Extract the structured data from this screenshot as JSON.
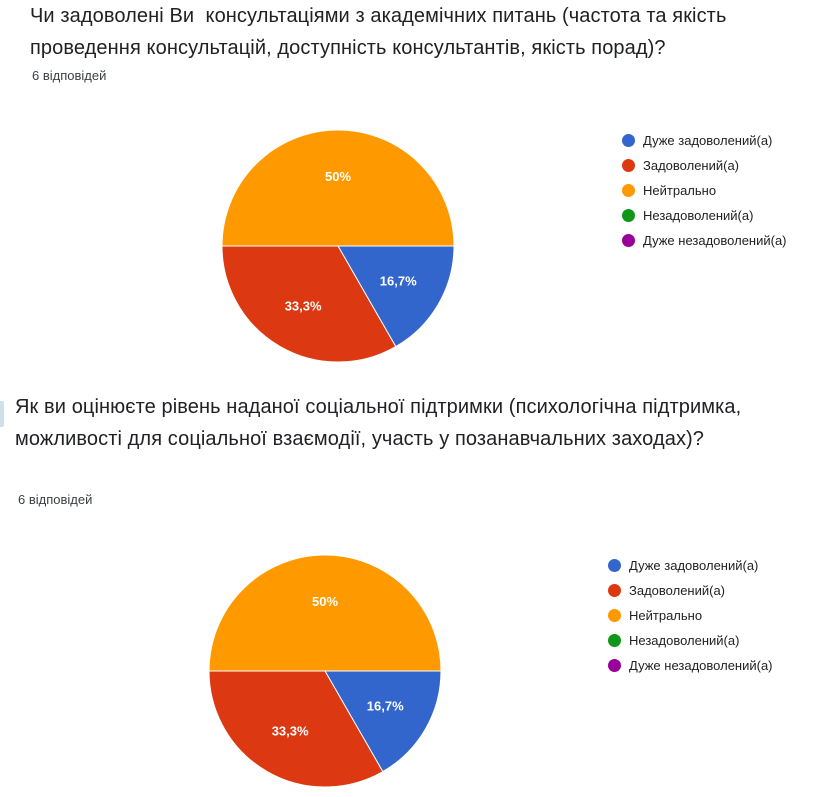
{
  "questions": [
    {
      "title": "Чи задоволені Ви  консультаціями з академічних питань (частота та якість проведення консультацій, доступність консультантів, якість порад)?",
      "response_count": "6 відповідей"
    },
    {
      "title": "Як ви оцінюєте рівень наданої соціальної підтримки (психологічна підтримка, можливості для соціальної взаємодії, участь у позанавчальних заходах)?",
      "response_count": "6 відповідей"
    }
  ],
  "chart_data": [
    {
      "type": "pie",
      "categories": [
        "Дуже задоволений(а)",
        "Задоволений(а)",
        "Нейтрально",
        "Незадоволений(а)",
        "Дуже незадоволений(а)"
      ],
      "values": [
        16.7,
        33.3,
        50,
        0,
        0
      ],
      "value_labels": [
        "16,7%",
        "33,3%",
        "50%",
        "",
        ""
      ],
      "colors": [
        "#3366CC",
        "#DC3912",
        "#FF9900",
        "#109618",
        "#990099"
      ],
      "legend": "right"
    },
    {
      "type": "pie",
      "categories": [
        "Дуже задоволений(а)",
        "Задоволений(а)",
        "Нейтрально",
        "Незадоволений(а)",
        "Дуже незадоволений(а)"
      ],
      "values": [
        16.7,
        33.3,
        50,
        0,
        0
      ],
      "value_labels": [
        "16,7%",
        "33,3%",
        "50%",
        "",
        ""
      ],
      "colors": [
        "#3366CC",
        "#DC3912",
        "#FF9900",
        "#109618",
        "#990099"
      ],
      "legend": "right"
    }
  ]
}
